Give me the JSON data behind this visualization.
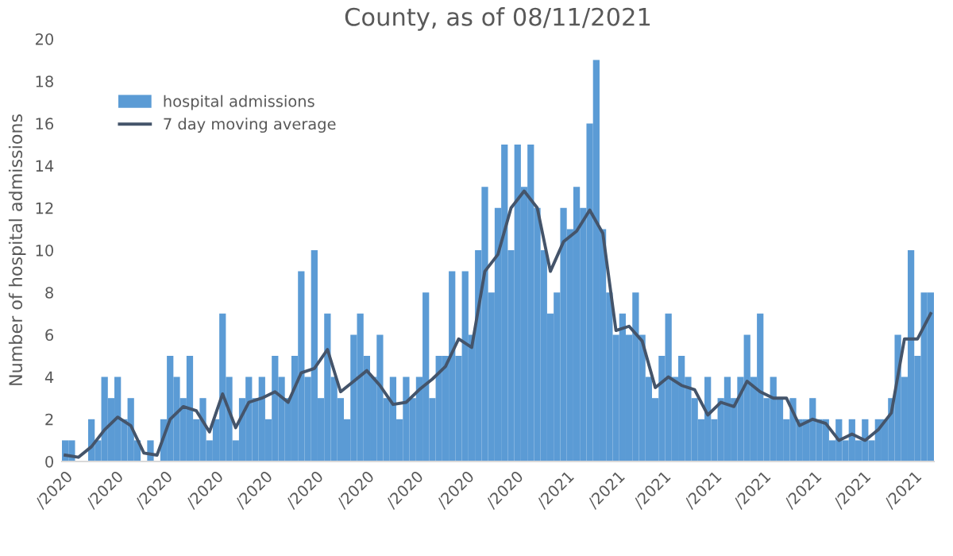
{
  "chart_data": {
    "type": "bar",
    "title": "County, as of 08/11/2021",
    "ylabel": "Number of hospital admissions",
    "x": [
      "2020-03-01",
      "2020-03-05",
      "2020-03-09",
      "2020-03-13",
      "2020-03-17",
      "2020-03-21",
      "2020-03-25",
      "2020-03-29",
      "2020-04-02",
      "2020-04-06",
      "2020-04-10",
      "2020-04-14",
      "2020-04-18",
      "2020-04-22",
      "2020-04-26",
      "2020-04-30",
      "2020-05-04",
      "2020-05-08",
      "2020-05-12",
      "2020-05-16",
      "2020-05-20",
      "2020-05-24",
      "2020-05-28",
      "2020-06-01",
      "2020-06-05",
      "2020-06-09",
      "2020-06-13",
      "2020-06-17",
      "2020-06-21",
      "2020-06-25",
      "2020-06-29",
      "2020-07-03",
      "2020-07-07",
      "2020-07-11",
      "2020-07-15",
      "2020-07-19",
      "2020-07-23",
      "2020-07-27",
      "2020-07-31",
      "2020-08-04",
      "2020-08-08",
      "2020-08-12",
      "2020-08-16",
      "2020-08-20",
      "2020-08-24",
      "2020-08-28",
      "2020-09-01",
      "2020-09-05",
      "2020-09-09",
      "2020-09-13",
      "2020-09-17",
      "2020-09-21",
      "2020-09-25",
      "2020-09-29",
      "2020-10-03",
      "2020-10-07",
      "2020-10-11",
      "2020-10-15",
      "2020-10-19",
      "2020-10-23",
      "2020-10-27",
      "2020-10-31",
      "2020-11-04",
      "2020-11-08",
      "2020-11-12",
      "2020-11-16",
      "2020-11-20",
      "2020-11-24",
      "2020-11-28",
      "2020-12-02",
      "2020-12-06",
      "2020-12-10",
      "2020-12-14",
      "2020-12-18",
      "2020-12-22",
      "2020-12-26",
      "2020-12-30",
      "2021-01-03",
      "2021-01-07",
      "2021-01-11",
      "2021-01-15",
      "2021-01-19",
      "2021-01-23",
      "2021-01-27",
      "2021-01-31",
      "2021-02-04",
      "2021-02-08",
      "2021-02-12",
      "2021-02-16",
      "2021-02-20",
      "2021-02-24",
      "2021-02-28",
      "2021-03-04",
      "2021-03-08",
      "2021-03-12",
      "2021-03-16",
      "2021-03-20",
      "2021-03-24",
      "2021-03-28",
      "2021-04-01",
      "2021-04-05",
      "2021-04-09",
      "2021-04-13",
      "2021-04-17",
      "2021-04-21",
      "2021-04-25",
      "2021-04-29",
      "2021-05-03",
      "2021-05-07",
      "2021-05-11",
      "2021-05-15",
      "2021-05-19",
      "2021-05-23",
      "2021-05-27",
      "2021-05-31",
      "2021-06-04",
      "2021-06-08",
      "2021-06-12",
      "2021-06-16",
      "2021-06-20",
      "2021-06-24",
      "2021-06-28",
      "2021-07-02",
      "2021-07-06",
      "2021-07-10",
      "2021-07-14",
      "2021-07-18",
      "2021-07-22",
      "2021-07-26",
      "2021-07-30",
      "2021-08-03",
      "2021-08-07",
      "2021-08-11"
    ],
    "series": [
      {
        "name": "hospital admissions",
        "color": "#5b9bd5",
        "values": [
          1,
          1,
          0,
          0,
          2,
          1,
          4,
          3,
          4,
          2,
          3,
          1,
          0,
          1,
          0,
          2,
          5,
          4,
          3,
          5,
          2,
          3,
          1,
          2,
          7,
          4,
          1,
          3,
          4,
          3,
          4,
          2,
          5,
          4,
          3,
          5,
          9,
          4,
          10,
          3,
          7,
          4,
          3,
          2,
          6,
          7,
          5,
          4,
          6,
          3,
          4,
          2,
          4,
          3,
          4,
          8,
          3,
          5,
          5,
          9,
          5,
          9,
          6,
          10,
          13,
          8,
          12,
          15,
          10,
          15,
          13,
          15,
          12,
          10,
          7,
          8,
          12,
          11,
          13,
          12,
          16,
          19,
          11,
          8,
          6,
          7,
          6,
          8,
          6,
          4,
          3,
          5,
          7,
          4,
          5,
          4,
          3,
          2,
          4,
          2,
          3,
          4,
          3,
          4,
          6,
          4,
          7,
          3,
          4,
          3,
          2,
          3,
          2,
          2,
          3,
          2,
          2,
          1,
          2,
          1,
          2,
          1,
          2,
          1,
          2,
          2,
          3,
          6,
          4,
          10,
          5,
          8,
          8
        ]
      },
      {
        "name": "7 day moving average",
        "type": "line",
        "color": "#44546a",
        "x": [
          "2020-03-01",
          "2020-03-09",
          "2020-03-17",
          "2020-03-25",
          "2020-04-02",
          "2020-04-10",
          "2020-04-18",
          "2020-04-26",
          "2020-05-04",
          "2020-05-12",
          "2020-05-20",
          "2020-05-28",
          "2020-06-05",
          "2020-06-13",
          "2020-06-21",
          "2020-06-29",
          "2020-07-07",
          "2020-07-15",
          "2020-07-23",
          "2020-07-31",
          "2020-08-08",
          "2020-08-16",
          "2020-08-24",
          "2020-09-01",
          "2020-09-09",
          "2020-09-17",
          "2020-09-25",
          "2020-10-03",
          "2020-10-11",
          "2020-10-19",
          "2020-10-27",
          "2020-11-04",
          "2020-11-12",
          "2020-11-20",
          "2020-11-28",
          "2020-12-06",
          "2020-12-14",
          "2020-12-22",
          "2020-12-30",
          "2021-01-07",
          "2021-01-15",
          "2021-01-23",
          "2021-01-31",
          "2021-02-08",
          "2021-02-16",
          "2021-02-24",
          "2021-03-04",
          "2021-03-12",
          "2021-03-20",
          "2021-03-28",
          "2021-04-05",
          "2021-04-13",
          "2021-04-21",
          "2021-04-29",
          "2021-05-07",
          "2021-05-15",
          "2021-05-23",
          "2021-05-31",
          "2021-06-08",
          "2021-06-16",
          "2021-06-24",
          "2021-07-02",
          "2021-07-10",
          "2021-07-18",
          "2021-07-26",
          "2021-08-03",
          "2021-08-11"
        ],
        "values": [
          0.3,
          0.2,
          0.7,
          1.5,
          2.1,
          1.7,
          0.4,
          0.3,
          2.0,
          2.6,
          2.4,
          1.4,
          3.2,
          1.6,
          2.8,
          3.0,
          3.3,
          2.8,
          4.2,
          4.4,
          5.3,
          3.3,
          3.8,
          4.3,
          3.6,
          2.7,
          2.8,
          3.4,
          3.9,
          4.5,
          5.8,
          5.4,
          9.0,
          9.8,
          12.0,
          12.8,
          12.0,
          9.0,
          10.4,
          10.9,
          11.9,
          10.8,
          6.2,
          6.4,
          5.7,
          3.5,
          4.0,
          3.6,
          3.4,
          2.2,
          2.8,
          2.6,
          3.8,
          3.3,
          3.0,
          3.0,
          1.7,
          2.0,
          1.8,
          1.0,
          1.3,
          1.0,
          1.5,
          2.3,
          5.8,
          5.8,
          7.0
        ]
      }
    ],
    "xlim": [
      "2020-02-28",
      "2021-08-13"
    ],
    "xticks": [
      {
        "value": "2020-03-01",
        "label": "/2020"
      },
      {
        "value": "2020-04-01",
        "label": "/2020"
      },
      {
        "value": "2020-05-01",
        "label": "/2020"
      },
      {
        "value": "2020-06-01",
        "label": "/2020"
      },
      {
        "value": "2020-07-01",
        "label": "/2020"
      },
      {
        "value": "2020-08-01",
        "label": "/2020"
      },
      {
        "value": "2020-09-01",
        "label": "/2020"
      },
      {
        "value": "2020-10-01",
        "label": "/2020"
      },
      {
        "value": "2020-11-01",
        "label": "/2020"
      },
      {
        "value": "2020-12-01",
        "label": "/2020"
      },
      {
        "value": "2021-01-01",
        "label": "/2021"
      },
      {
        "value": "2021-02-01",
        "label": "/2021"
      },
      {
        "value": "2021-03-01",
        "label": "/2021"
      },
      {
        "value": "2021-04-01",
        "label": "/2021"
      },
      {
        "value": "2021-05-01",
        "label": "/2021"
      },
      {
        "value": "2021-06-01",
        "label": "/2021"
      },
      {
        "value": "2021-07-01",
        "label": "/2021"
      },
      {
        "value": "2021-08-01",
        "label": "/2021"
      }
    ],
    "ylim": [
      0,
      20
    ],
    "yticks": [
      0,
      2,
      4,
      6,
      8,
      10,
      12,
      14,
      16,
      18,
      20
    ],
    "grid": false,
    "legend": "top left"
  }
}
